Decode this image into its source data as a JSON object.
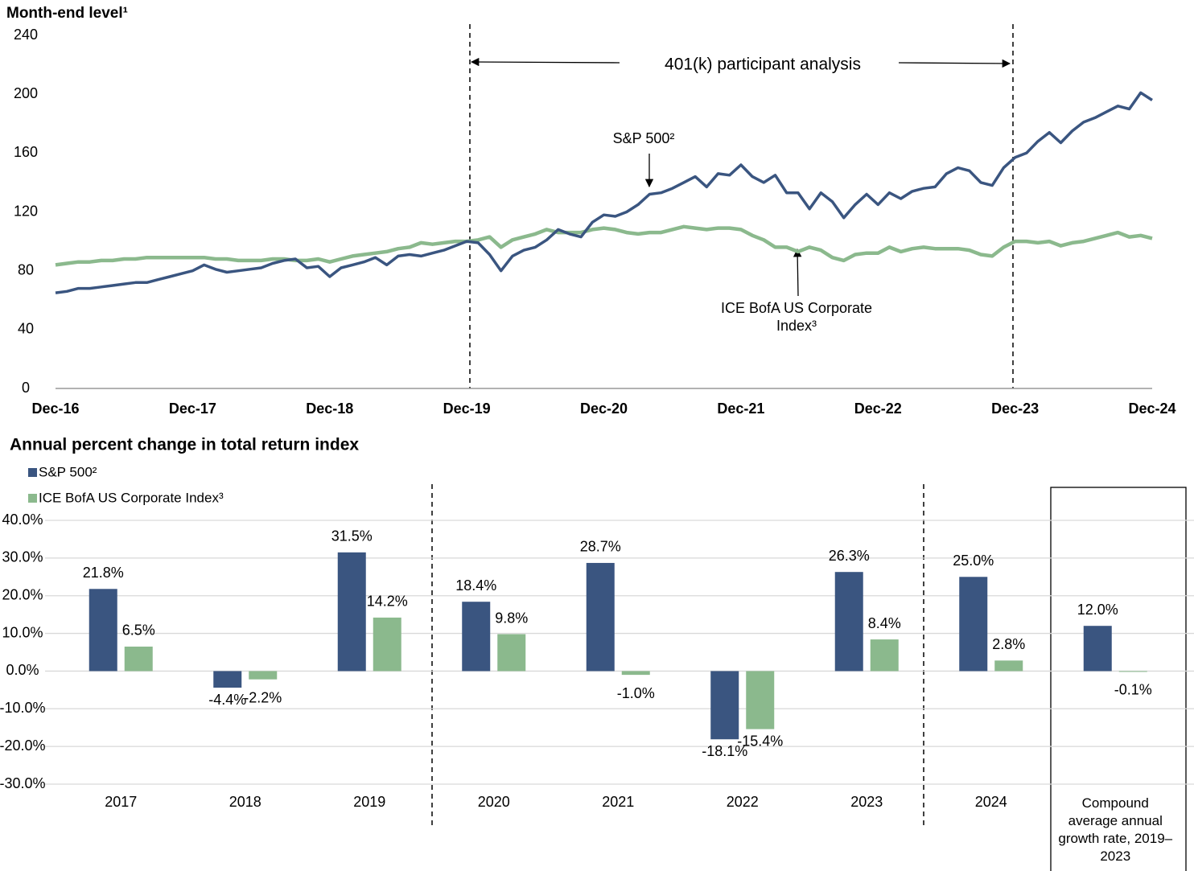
{
  "chart_data": [
    {
      "type": "line",
      "ylabel": "Month-end level¹",
      "categories": [
        "Dec-16",
        null,
        null,
        null,
        null,
        null,
        null,
        null,
        null,
        null,
        null,
        null,
        "Dec-17",
        null,
        null,
        null,
        null,
        null,
        null,
        null,
        null,
        null,
        null,
        null,
        "Dec-18",
        null,
        null,
        null,
        null,
        null,
        null,
        null,
        null,
        null,
        null,
        null,
        "Dec-19",
        null,
        null,
        null,
        null,
        null,
        null,
        null,
        null,
        null,
        null,
        null,
        "Dec-20",
        null,
        null,
        null,
        null,
        null,
        null,
        null,
        null,
        null,
        null,
        null,
        "Dec-21",
        null,
        null,
        null,
        null,
        null,
        null,
        null,
        null,
        null,
        null,
        null,
        "Dec-22",
        null,
        null,
        null,
        null,
        null,
        null,
        null,
        null,
        null,
        null,
        null,
        "Dec-23",
        null,
        null,
        null,
        null,
        null,
        null,
        null,
        null,
        null,
        null,
        null,
        "Dec-24"
      ],
      "series": [
        {
          "name": "S&P 500²",
          "color": "#3a5580",
          "values": [
            65,
            66,
            68,
            68,
            69,
            70,
            71,
            72,
            72,
            74,
            76,
            78,
            80,
            84,
            81,
            79,
            80,
            81,
            82,
            85,
            87,
            88,
            82,
            83,
            76,
            82,
            84,
            86,
            89,
            84,
            90,
            91,
            90,
            92,
            94,
            97,
            100,
            99,
            91,
            80,
            90,
            94,
            96,
            101,
            108,
            105,
            103,
            113,
            118,
            117,
            120,
            125,
            132,
            133,
            136,
            140,
            144,
            137,
            146,
            145,
            152,
            144,
            140,
            145,
            133,
            133,
            122,
            133,
            127,
            116,
            125,
            132,
            125,
            133,
            129,
            134,
            136,
            137,
            146,
            150,
            148,
            140,
            138,
            150,
            157,
            160,
            168,
            174,
            167,
            175,
            181,
            184,
            188,
            192,
            190,
            201,
            196
          ]
        },
        {
          "name": "ICE BofA US Corporate Index³",
          "color": "#8bb98d",
          "values": [
            84,
            85,
            86,
            86,
            87,
            87,
            88,
            88,
            89,
            89,
            89,
            89,
            89,
            89,
            88,
            88,
            87,
            87,
            87,
            88,
            88,
            87,
            87,
            88,
            86,
            88,
            90,
            91,
            92,
            93,
            95,
            96,
            99,
            98,
            99,
            100,
            100,
            101,
            103,
            96,
            101,
            103,
            105,
            108,
            106,
            106,
            106,
            108,
            109,
            108,
            106,
            105,
            106,
            106,
            108,
            110,
            109,
            108,
            109,
            109,
            108,
            104,
            101,
            96,
            96,
            93,
            96,
            94,
            89,
            87,
            91,
            92,
            92,
            96,
            93,
            95,
            96,
            95,
            95,
            95,
            94,
            91,
            90,
            96,
            100,
            100,
            99,
            100,
            97,
            99,
            100,
            102,
            104,
            106,
            103,
            104,
            102
          ]
        }
      ],
      "ylim": [
        0,
        240
      ],
      "yticks": [
        0,
        40,
        80,
        120,
        160,
        200,
        240
      ],
      "annotations": [
        "401(k) participant analysis",
        "S&P 500²",
        "ICE BofA US Corporate Index³"
      ]
    },
    {
      "type": "bar",
      "title": "Annual percent change in total return index",
      "categories": [
        "2017",
        "2018",
        "2019",
        "2020",
        "2021",
        "2022",
        "2023",
        "2024",
        "Compound average annual growth rate, 2019–2023"
      ],
      "series": [
        {
          "name": "S&P 500²",
          "color": "#3a5580",
          "values": [
            21.8,
            -4.4,
            31.5,
            18.4,
            28.7,
            -18.1,
            26.3,
            25.0,
            12.0
          ],
          "value_labels": [
            "21.8%",
            "-4.4%",
            "31.5%",
            "18.4%",
            "28.7%",
            "-18.1%",
            "26.3%",
            "25.0%",
            "12.0%"
          ]
        },
        {
          "name": "ICE BofA US Corporate Index³",
          "color": "#8bb98d",
          "values": [
            6.5,
            -2.2,
            14.2,
            9.8,
            -1.0,
            -15.4,
            8.4,
            2.8,
            -0.1
          ],
          "value_labels": [
            "6.5%",
            "-2.2%",
            "14.2%",
            "9.8%",
            "-1.0%",
            "-15.4%",
            "8.4%",
            "2.8%",
            "-0.1%"
          ]
        }
      ],
      "ylim": [
        -30,
        40
      ],
      "yticks": [
        {
          "value": -30,
          "label": "-30.0%"
        },
        {
          "value": -20,
          "label": "-20.0%"
        },
        {
          "value": -10,
          "label": "-10.0%"
        },
        {
          "value": 0,
          "label": "0.0%"
        },
        {
          "value": 10,
          "label": "10.0%"
        },
        {
          "value": 20,
          "label": "20.0%"
        },
        {
          "value": 30,
          "label": "30.0%"
        },
        {
          "value": 40,
          "label": "40.0%"
        }
      ],
      "grid": true,
      "legend": "top-left"
    }
  ]
}
